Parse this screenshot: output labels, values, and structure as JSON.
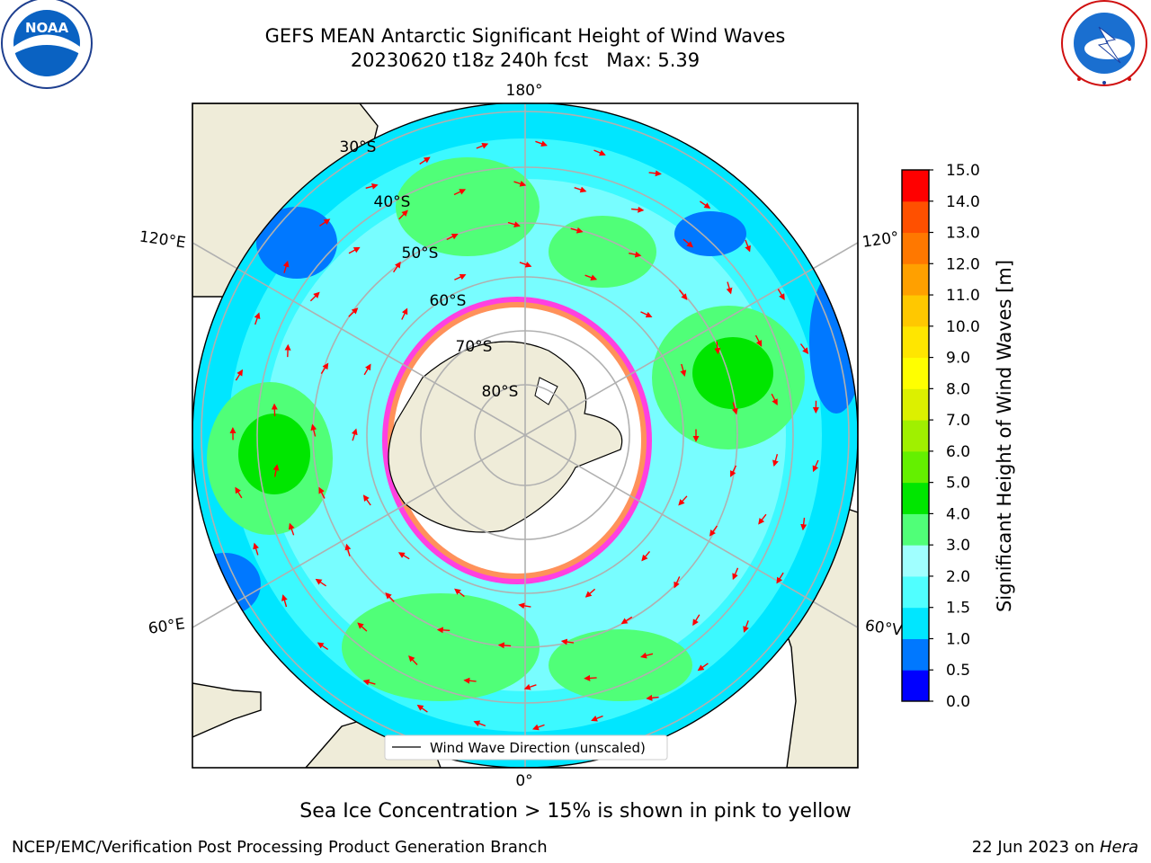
{
  "header": {
    "title_line1": "GEFS MEAN Antarctic Significant Height of Wind Waves",
    "title_line2": "20230620 t18z 240h fcst   Max: 5.39"
  },
  "logos": {
    "noaa": {
      "text": "NOAA",
      "ring_text": "NATIONAL OCEANIC AND ATMOSPHERIC ADMINISTRATION · U.S. DEPARTMENT OF COMMERCE"
    },
    "nws": {
      "ring_text": "NATIONAL WEATHER SERVICE"
    }
  },
  "map": {
    "longitude_labels": {
      "top": "180°",
      "bottom": "0°",
      "left_upper": "120°E",
      "left_lower": "60°E",
      "right_upper": "120°",
      "right_lower": "60°V"
    },
    "latitude_labels": [
      "30°S",
      "40°S",
      "50°S",
      "60°S",
      "70°S",
      "80°S"
    ],
    "legend_label": "Wind Wave Direction (unscaled)",
    "colors": {
      "land": "#efecd9",
      "sea_ice": "#ffffff",
      "ice_edge": "#ff40e0",
      "arrow": "#ff0000",
      "grid": "#b0b0b0"
    }
  },
  "colorbar": {
    "label": "Significant Height of Wind Waves [m]",
    "ticks": [
      "0.0",
      "0.5",
      "1.0",
      "1.5",
      "2.0",
      "3.0",
      "4.0",
      "5.0",
      "6.0",
      "7.0",
      "8.0",
      "9.0",
      "10.0",
      "11.0",
      "12.0",
      "13.0",
      "14.0",
      "15.0"
    ],
    "colors": [
      "#0000ff",
      "#0078ff",
      "#00e6ff",
      "#50ffff",
      "#a0ffff",
      "#50ff78",
      "#00e600",
      "#64f000",
      "#a0f000",
      "#dcf000",
      "#ffff00",
      "#ffe600",
      "#ffc800",
      "#ffa000",
      "#ff7800",
      "#ff5000",
      "#ff0000"
    ]
  },
  "annotation": "Sea Ice Concentration > 15% is shown in pink to yellow",
  "footer": {
    "left": "NCEP/EMC/Verification Post Processing Product Generation Branch",
    "right_prefix": "22 Jun 2023 on ",
    "right_emph": "Hera"
  }
}
